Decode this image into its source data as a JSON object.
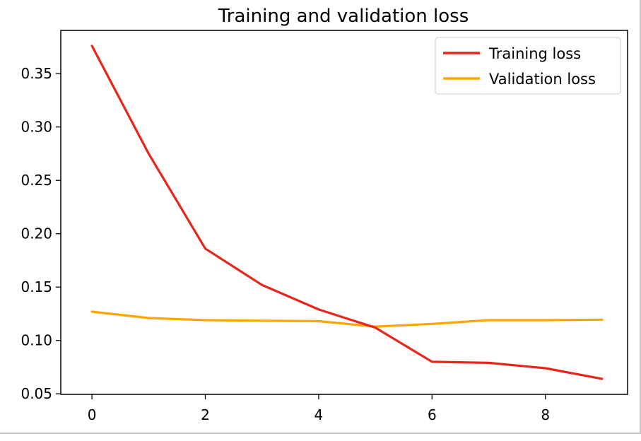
{
  "chart_data": {
    "type": "line",
    "title": "Training and validation loss",
    "xlabel": "",
    "ylabel": "",
    "x": [
      0,
      1,
      2,
      3,
      4,
      5,
      6,
      7,
      8,
      9
    ],
    "series": [
      {
        "name": "Training loss",
        "color": "#e8241b",
        "values": [
          0.376,
          0.275,
          0.186,
          0.152,
          0.129,
          0.112,
          0.08,
          0.079,
          0.074,
          0.064
        ]
      },
      {
        "name": "Validation loss",
        "color": "#ffa500",
        "values": [
          0.127,
          0.121,
          0.119,
          0.1185,
          0.118,
          0.113,
          0.1155,
          0.119,
          0.119,
          0.1195
        ]
      }
    ],
    "xlim": [
      -0.55,
      9.45
    ],
    "ylim": [
      0.0495,
      0.3905
    ],
    "xticks": [
      0,
      2,
      4,
      6,
      8
    ],
    "xtick_labels": [
      "0",
      "2",
      "4",
      "6",
      "8"
    ],
    "yticks": [
      0.05,
      0.1,
      0.15,
      0.2,
      0.25,
      0.3,
      0.35
    ],
    "ytick_labels": [
      "0.05",
      "0.10",
      "0.15",
      "0.20",
      "0.25",
      "0.30",
      "0.35"
    ],
    "grid": false,
    "legend_position": "top-right"
  }
}
